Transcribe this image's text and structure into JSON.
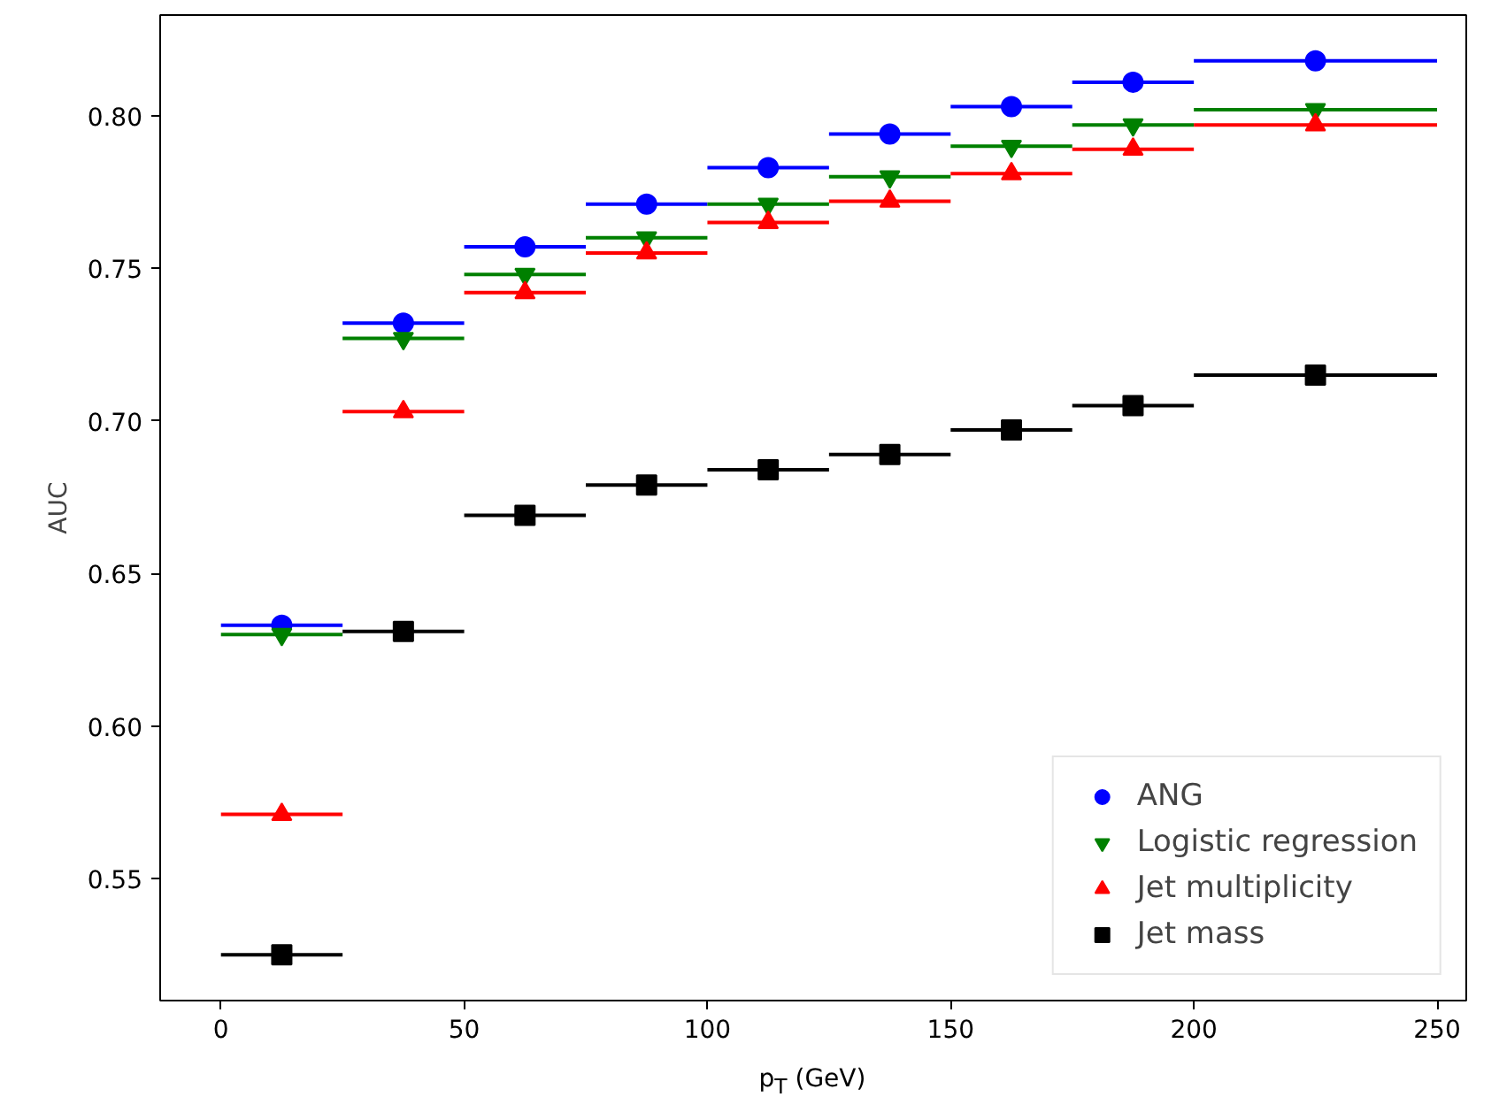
{
  "chart_data": {
    "type": "scatter",
    "xlabel": "p$_{T}$ (GeV)",
    "ylabel": "AUC",
    "x": [
      12.5,
      37.5,
      62.5,
      87.5,
      112.5,
      137.5,
      162.5,
      187.5,
      225
    ],
    "series": [
      {
        "name": "ANG",
        "color": "#0000ff",
        "marker": "circle",
        "values": [
          0.633,
          0.732,
          0.757,
          0.771,
          0.783,
          0.794,
          0.803,
          0.811,
          0.818
        ],
        "xerrors": [
          12.5,
          12.5,
          12.5,
          12.5,
          12.5,
          12.5,
          12.5,
          12.5,
          25
        ]
      },
      {
        "name": "Logistic regression",
        "color": "#008000",
        "marker": "triangle_down",
        "values": [
          0.63,
          0.727,
          0.748,
          0.76,
          0.771,
          0.78,
          0.79,
          0.797,
          0.802
        ],
        "xerrors": [
          12.5,
          12.5,
          12.5,
          12.5,
          12.5,
          12.5,
          12.5,
          12.5,
          25
        ]
      },
      {
        "name": "Jet multiplicity",
        "color": "#ff0000",
        "marker": "triangle",
        "values": [
          0.571,
          0.703,
          0.742,
          0.755,
          0.765,
          0.772,
          0.781,
          0.789,
          0.797
        ],
        "xerrors": [
          12.5,
          12.5,
          12.5,
          12.5,
          12.5,
          12.5,
          12.5,
          12.5,
          25
        ]
      },
      {
        "name": "Jet mass",
        "color": "#000000",
        "marker": "square",
        "values": [
          0.525,
          0.631,
          0.669,
          0.679,
          0.684,
          0.689,
          0.697,
          0.705,
          0.715
        ],
        "xerrors": [
          12.5,
          12.5,
          12.5,
          12.5,
          12.5,
          12.5,
          12.5,
          12.5,
          25
        ]
      }
    ],
    "xlim": [
      -12.5,
      256
    ],
    "ylim": [
      0.51,
      0.833
    ],
    "xticks": [
      0,
      50,
      100,
      150,
      200,
      250
    ],
    "yticks": [
      {
        "value": 0.55,
        "label": "0.55"
      },
      {
        "value": 0.6,
        "label": "0.60"
      },
      {
        "value": 0.65,
        "label": "0.65"
      },
      {
        "value": 0.7,
        "label": "0.70"
      },
      {
        "value": 0.75,
        "label": "0.75"
      },
      {
        "value": 0.8,
        "label": "0.80"
      }
    ],
    "legend": "bottom right",
    "grid": false
  }
}
